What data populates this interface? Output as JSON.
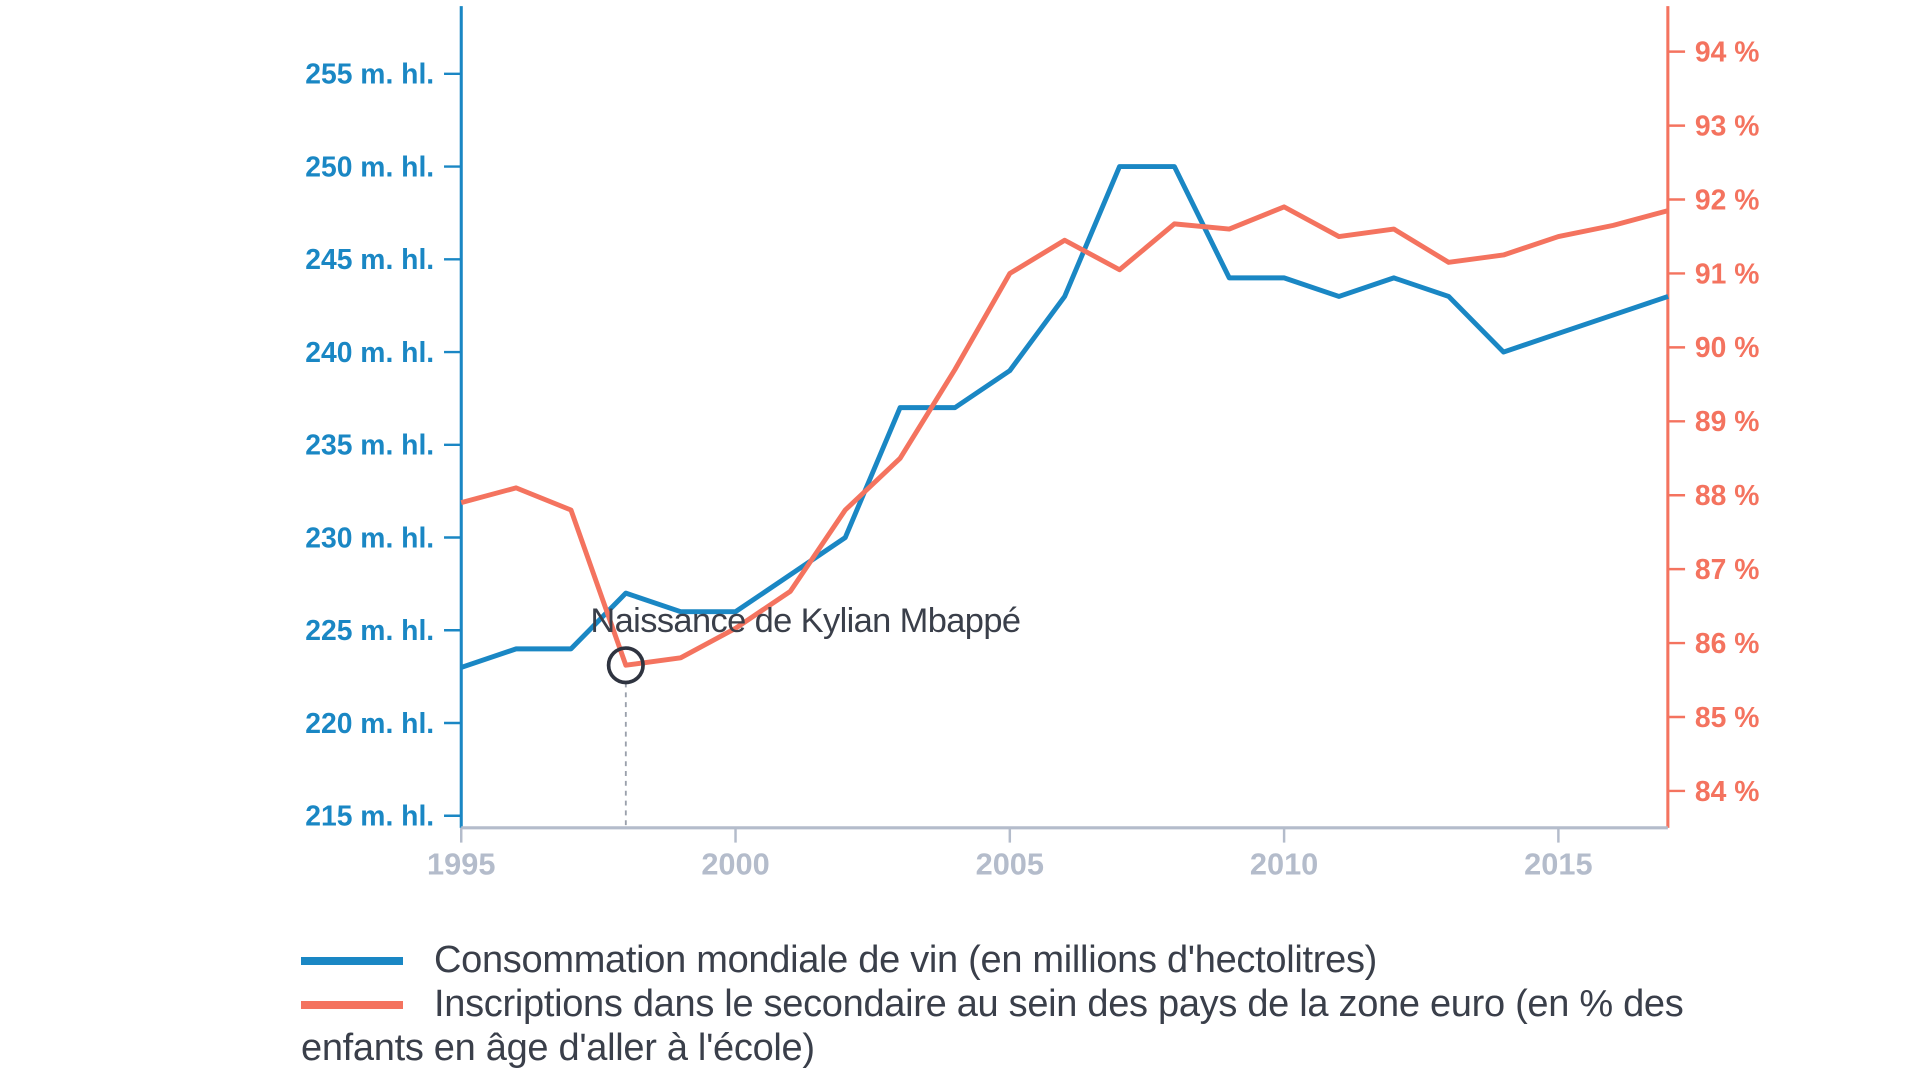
{
  "chart_data": {
    "type": "line",
    "title": "",
    "x": [
      1995,
      1996,
      1997,
      1998,
      1999,
      2000,
      2001,
      2002,
      2003,
      2004,
      2005,
      2006,
      2007,
      2008,
      2009,
      2010,
      2011,
      2012,
      2013,
      2014,
      2015,
      2016,
      2017
    ],
    "xlim": [
      1995,
      2017
    ],
    "x_ticks": [
      "1995",
      "2000",
      "2005",
      "2010",
      "2015"
    ],
    "x_tick_values": [
      1995,
      2000,
      2005,
      2010,
      2015
    ],
    "y_left": {
      "ylim": [
        214,
        258.5
      ],
      "ticks": [
        215,
        220,
        225,
        230,
        235,
        240,
        245,
        250,
        255
      ],
      "tick_labels": [
        "215 m. hl.",
        "220 m. hl.",
        "225 m. hl.",
        "230 m. hl.",
        "235 m. hl.",
        "240 m. hl.",
        "245 m. hl.",
        "250 m. hl.",
        "255 m. hl."
      ]
    },
    "y_right": {
      "ylim": [
        83.5,
        94.6
      ],
      "ticks": [
        84,
        85,
        86,
        87,
        88,
        89,
        90,
        91,
        92,
        93,
        94
      ],
      "tick_labels": [
        "84 %",
        "85 %",
        "86 %",
        "87 %",
        "88 %",
        "89 %",
        "90 %",
        "91 %",
        "92 %",
        "93 %",
        "94 %"
      ]
    },
    "series": [
      {
        "name": "Consommation mondiale de vin (en millions d'hectolitres)",
        "axis": "left",
        "color": "#1a87c4",
        "values": [
          223,
          224,
          224,
          227,
          226,
          226,
          228,
          230,
          237,
          237,
          239,
          243,
          250,
          250,
          244,
          244,
          243,
          244,
          243,
          240,
          241,
          242,
          243
        ]
      },
      {
        "name": "Inscriptions dans le secondaire au sein des pays de la zone euro (en % des enfants en âge d'aller à l'école)",
        "axis": "right",
        "color": "#f4735f",
        "values": [
          87.9,
          88.1,
          87.8,
          85.7,
          85.8,
          86.2,
          86.7,
          87.8,
          88.5,
          89.7,
          91.0,
          91.45,
          91.05,
          91.67,
          91.6,
          91.9,
          91.5,
          91.6,
          91.15,
          91.25,
          91.5,
          91.65,
          91.85
        ]
      }
    ],
    "annotation": {
      "text": "Naissance de Kylian Mbappé",
      "x": 1998,
      "y_right": 85.7
    },
    "grid": false,
    "legend_position": "bottom-left"
  }
}
